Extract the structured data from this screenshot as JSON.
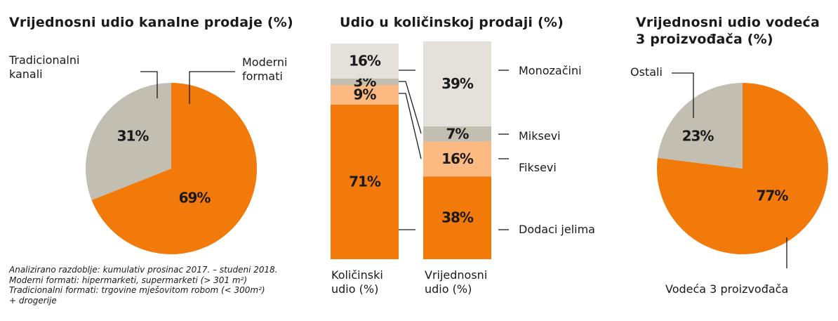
{
  "chart_data": [
    {
      "type": "pie",
      "title": "Vrijednosni udio kanalne prodaje (%)",
      "labels": [
        "Moderni formati",
        "Tradicionalni kanali"
      ],
      "values": [
        69,
        31
      ],
      "value_labels": [
        "69%",
        "31%"
      ],
      "colors": [
        "#f27a0a",
        "#c3beb2"
      ],
      "label_lines": [
        "Moderni\nformati",
        "Tradicionalni\nkanali"
      ]
    },
    {
      "type": "bar",
      "stacked": true,
      "title": "Udio u količinskoj prodaji (%)",
      "categories": [
        "Količinski udio (%)",
        "Vrijednosni udio (%)"
      ],
      "series": [
        {
          "name": "Dodaci jelima",
          "values": [
            71,
            38
          ],
          "labels": [
            "71%",
            "38%"
          ],
          "color": "#f27a0a"
        },
        {
          "name": "Fiksevi",
          "values": [
            9,
            16
          ],
          "labels": [
            "9%",
            "16%"
          ],
          "color": "#fdb982"
        },
        {
          "name": "Miksevi",
          "values": [
            3,
            7
          ],
          "labels": [
            "3%",
            "7%"
          ],
          "color": "#c3beb2"
        },
        {
          "name": "Monozačini",
          "values": [
            16,
            39
          ],
          "labels": [
            "16%",
            "39%"
          ],
          "color": "#e3e1da"
        }
      ],
      "category_lines": [
        [
          "Količinski",
          "udio (%)"
        ],
        [
          "Vrijednosni",
          "udio (%)"
        ]
      ],
      "ylim": [
        0,
        100
      ]
    },
    {
      "type": "pie",
      "title": "Vrijednosni udio vodeća 3 proizvođača (%)",
      "title_lines": [
        "Vrijednosni udio vodeća",
        "3 proizvođača (%)"
      ],
      "labels": [
        "Vodeća 3 proizvođača",
        "Ostali"
      ],
      "values": [
        77,
        23
      ],
      "value_labels": [
        "77%",
        "23%"
      ],
      "colors": [
        "#f27a0a",
        "#c3beb2"
      ]
    }
  ],
  "footnote": [
    "Analizirano razdoblje: kumulativ prosinac 2017. – studeni 2018.",
    "Moderni formati: hipermarketi, supermarketi (> 301 m²)",
    "Tradicionalni formati: trgovine mješovitom robom (< 300m²)",
    "+ drogerije"
  ]
}
